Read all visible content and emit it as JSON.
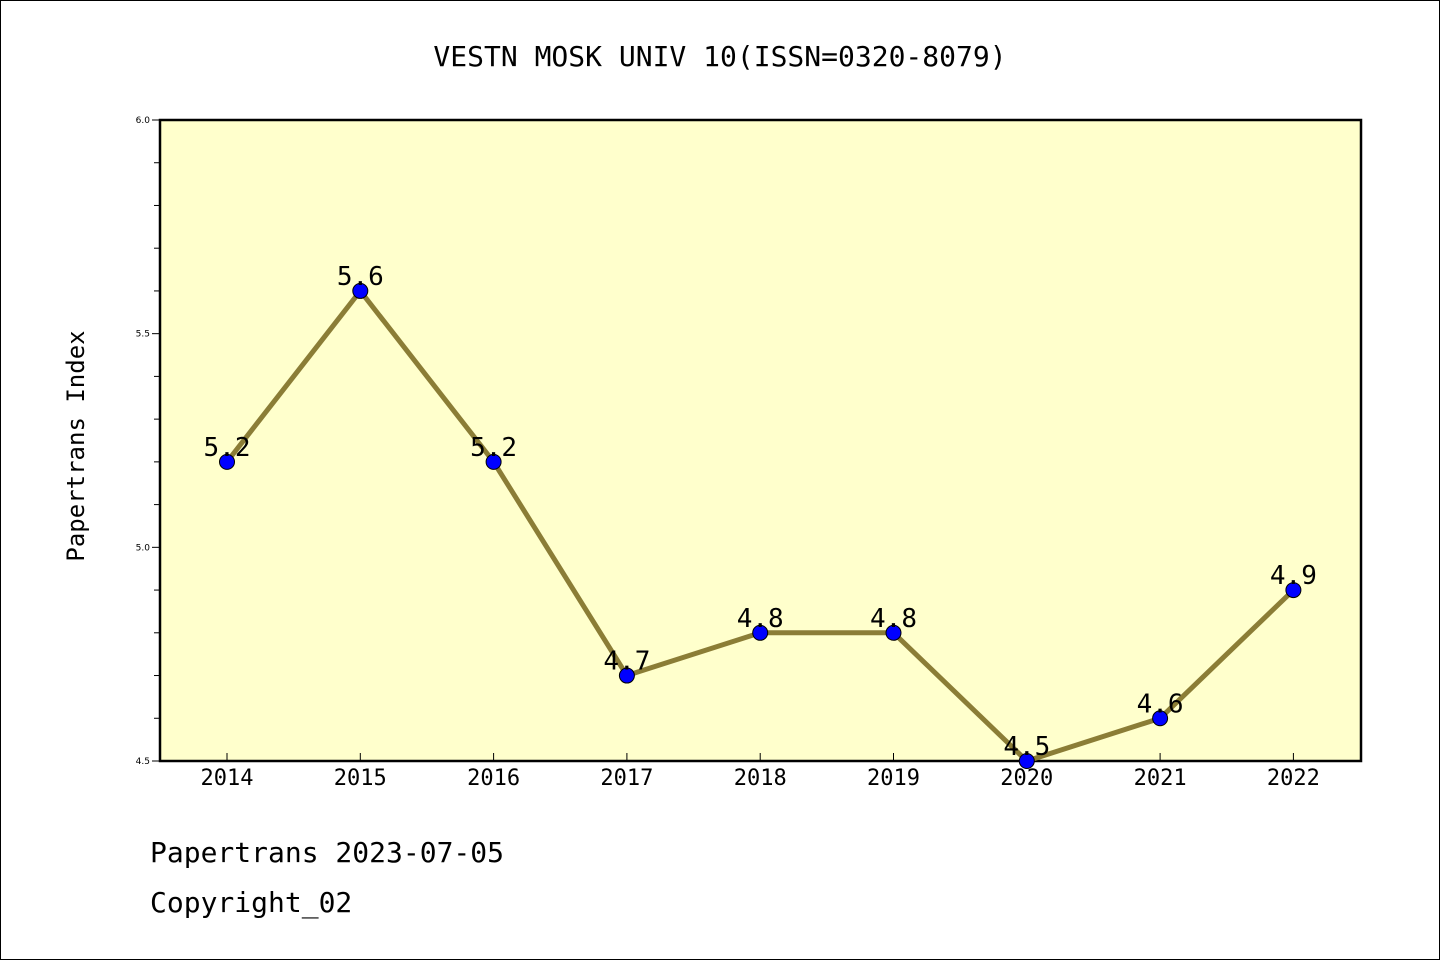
{
  "chart_data": {
    "type": "line",
    "title": "VESTN MOSK UNIV 10(ISSN=0320-8079)",
    "xlabel": "",
    "ylabel": "Papertrans Index",
    "categories": [
      "2014",
      "2015",
      "2016",
      "2017",
      "2018",
      "2019",
      "2020",
      "2021",
      "2022"
    ],
    "values": [
      5.2,
      5.6,
      5.2,
      4.7,
      4.8,
      4.8,
      4.5,
      4.6,
      4.9
    ],
    "data_labels": [
      "5.2",
      "5.6",
      "5.2",
      "4.7",
      "4.8",
      "4.8",
      "4.5",
      "4.6",
      "4.9"
    ],
    "ylim": [
      4.5,
      6.0
    ],
    "yticks": [
      "4.5",
      "5.0",
      "5.5",
      "6.0"
    ],
    "grid": false,
    "legend": "none",
    "plot_background": "#ffffcc",
    "line_color": "#8b7d36",
    "marker_color": "#0000ff"
  },
  "footer": {
    "line1": "Papertrans 2023-07-05",
    "line2": "Copyright_02"
  }
}
